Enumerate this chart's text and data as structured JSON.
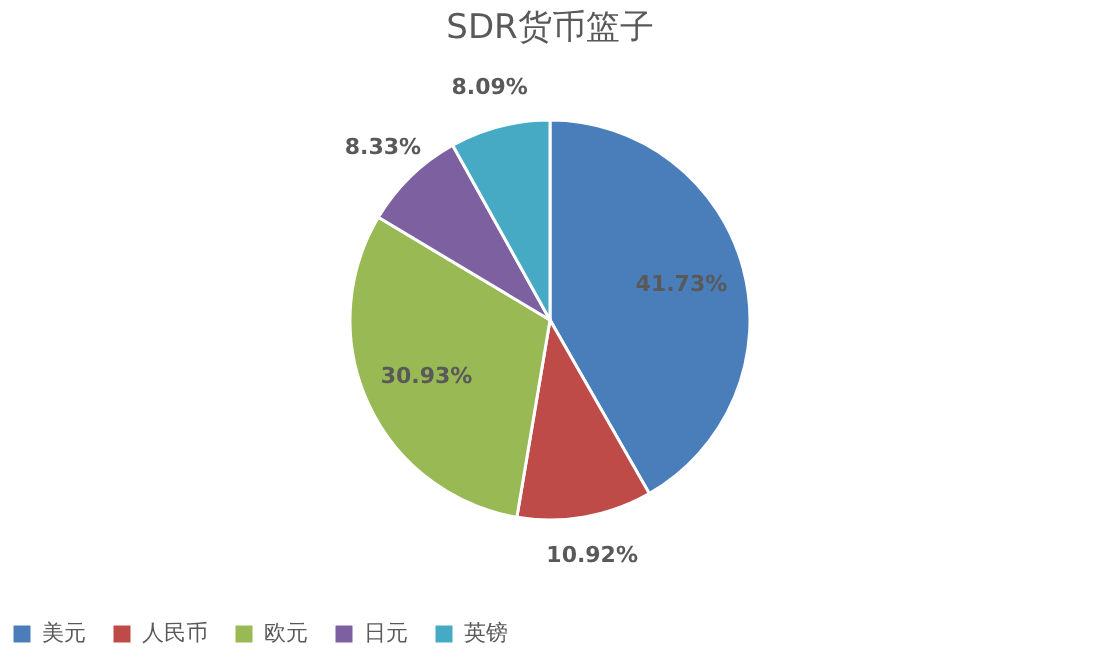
{
  "chart_data": {
    "type": "pie",
    "title": "SDR货币篮子",
    "categories": [
      "美元",
      "人民币",
      "欧元",
      "日元",
      "英镑"
    ],
    "values": [
      41.73,
      10.92,
      30.93,
      8.33,
      8.09
    ],
    "colors": [
      "#4a7ebb",
      "#be4b48",
      "#98b954",
      "#7d60a0",
      "#46aac5"
    ],
    "value_labels": [
      "41.73%",
      "10.92%",
      "30.93%",
      "8.33%",
      "8.09%"
    ],
    "legend": "bottom"
  }
}
